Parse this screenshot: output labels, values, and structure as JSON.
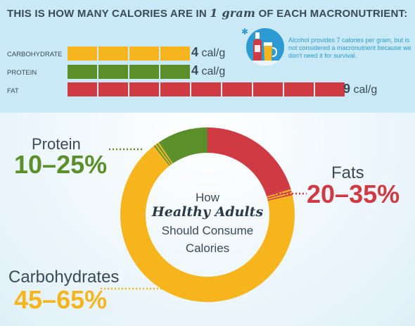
{
  "header": {
    "title_prefix": "THIS IS HOW MANY CALORIES ARE IN",
    "title_script": "1 gram",
    "title_suffix": "OF EACH MACRONUTRIENT:"
  },
  "calorie_bars": [
    {
      "label": "CARBOHYDRATE",
      "value_num": "4",
      "value_unit": "cal/g",
      "calories_per_gram": 4,
      "color": "#f7b51d"
    },
    {
      "label": "PROTEIN",
      "value_num": "4",
      "value_unit": "cal/g",
      "calories_per_gram": 4,
      "color": "#5a8f29"
    },
    {
      "label": "FAT",
      "value_num": "9",
      "value_unit": "cal/g",
      "calories_per_gram": 9,
      "color": "#cf3a43"
    }
  ],
  "alcohol_note": "Alcohol provides 7 calories per gram, but is not considered a macronutrient because we don't need it for survival.",
  "center": {
    "line1": "How",
    "line2": "Healthy Adults",
    "line3": "Should Consume",
    "line4": "Calories"
  },
  "labels": {
    "protein": {
      "name": "Protein",
      "range": "10–25%"
    },
    "fats": {
      "name": "Fats",
      "range": "20–35%"
    },
    "carbs": {
      "name": "Carbohydrates",
      "range": "45–65%"
    }
  },
  "colors": {
    "carb": "#f7b51d",
    "protein": "#5a8f29",
    "fat": "#cf3a43",
    "text": "#3a4a56",
    "accent": "#2c9bd3"
  },
  "chart_data": [
    {
      "type": "bar",
      "title": "THIS IS HOW MANY CALORIES ARE IN 1 gram OF EACH MACRONUTRIENT:",
      "categories": [
        "CARBOHYDRATE",
        "PROTEIN",
        "FAT"
      ],
      "values": [
        4,
        4,
        9
      ],
      "value_labels": [
        "4 cal/g",
        "4 cal/g",
        "9 cal/g"
      ]
    },
    {
      "type": "pie",
      "title": "How Healthy Adults Should Consume Calories",
      "categories": [
        "Fats",
        "Carbohydrates",
        "Protein"
      ],
      "ranges": [
        "20–35%",
        "45–65%",
        "10–25%"
      ],
      "range_low": [
        20,
        45,
        10
      ],
      "range_high": [
        35,
        65,
        25
      ],
      "slice_order_clockwise_from_top": [
        "Fats",
        "Carbohydrates",
        "Protein"
      ]
    }
  ]
}
